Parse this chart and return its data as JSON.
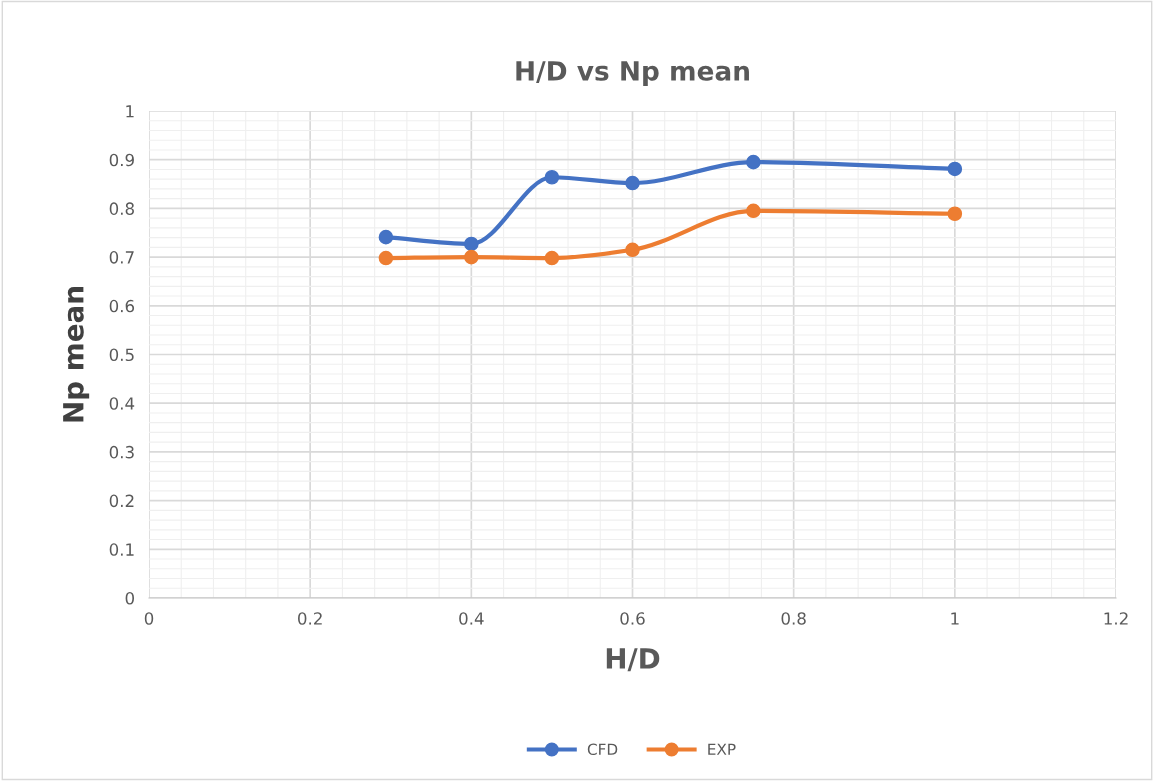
{
  "chart_data": {
    "type": "line",
    "title": "H/D vs Np mean",
    "xlabel": "H/D",
    "ylabel": "Np mean",
    "x": [
      0.294,
      0.4,
      0.5,
      0.6,
      0.75,
      1.0
    ],
    "series": [
      {
        "name": "CFD",
        "color": "#4472c4",
        "values": [
          0.741,
          0.727,
          0.864,
          0.852,
          0.895,
          0.881
        ]
      },
      {
        "name": "EXP",
        "color": "#ed7d31",
        "values": [
          0.698,
          0.7,
          0.698,
          0.715,
          0.795,
          0.789
        ]
      }
    ],
    "xlim": [
      0,
      1.2
    ],
    "xticks": [
      0,
      0.2,
      0.4,
      0.6,
      0.8,
      1,
      1.2
    ],
    "ylim": [
      0,
      1
    ],
    "yticks": [
      0,
      0.1,
      0.2,
      0.3,
      0.4,
      0.5,
      0.6,
      0.7,
      0.8,
      0.9,
      1
    ],
    "grid": true,
    "legend": "bottom",
    "marker": "circle",
    "line_style": "solid"
  }
}
